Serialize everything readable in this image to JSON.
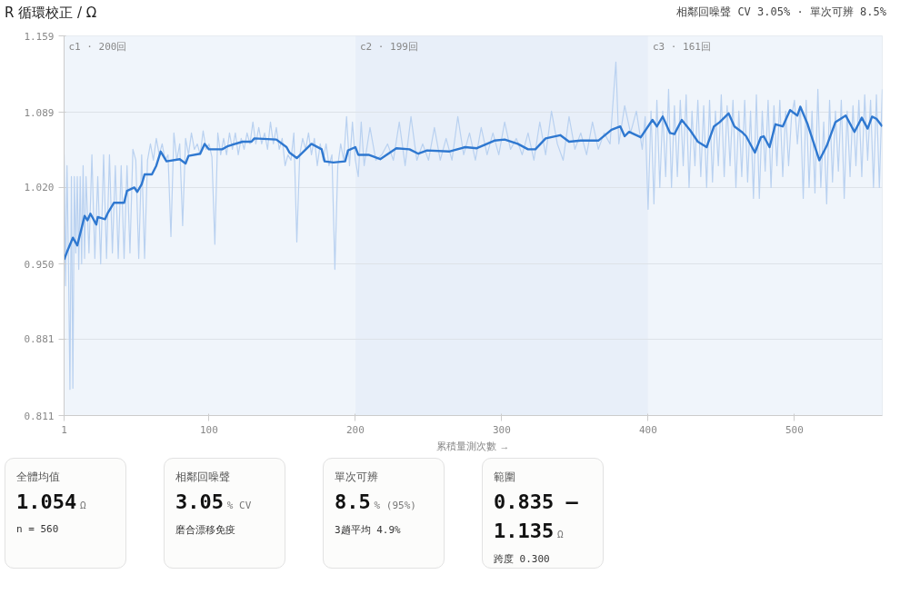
{
  "chart_data": [
    {
      "type": "line",
      "title": "R 循環校正 / Ω",
      "subtitle": "相鄰回噪聲 CV 3.05% · 單次可辨 8.5%",
      "xlabel": "累積量測次數 →",
      "xlim": [
        1,
        560
      ],
      "xticks": [
        1,
        100,
        200,
        300,
        400,
        500
      ],
      "ylim": [
        0.811,
        1.159
      ],
      "yticks": [
        {
          "value": 0.811,
          "label": "0.811"
        },
        {
          "value": 0.881,
          "label": "0.881"
        },
        {
          "value": 0.95,
          "label": "0.950"
        },
        {
          "value": 1.02,
          "label": "1.020"
        },
        {
          "value": 1.089,
          "label": "1.089"
        },
        {
          "value": 1.159,
          "label": "1.159"
        }
      ],
      "grid": "y",
      "marker": "none",
      "line_style": "solid",
      "bands": [
        {
          "axis": "x",
          "from": 1,
          "to": 200,
          "label": "c1 · 200回",
          "color": "#f0f5fb"
        },
        {
          "axis": "x",
          "from": 200,
          "to": 400,
          "label": "c2 · 199回",
          "color": "#e8eff9"
        },
        {
          "axis": "x",
          "from": 400,
          "to": 560,
          "label": "c3 · 161回",
          "color": "#f0f5fb"
        }
      ],
      "series": [
        {
          "color": "#b9d1f0",
          "x": [
            1,
            2,
            3,
            4,
            5,
            6,
            7,
            8,
            9,
            10,
            11,
            12,
            13,
            14,
            15,
            16,
            18,
            20,
            22,
            24,
            26,
            28,
            30,
            32,
            34,
            36,
            38,
            40,
            42,
            44,
            46,
            48,
            50,
            52,
            54,
            56,
            58,
            60,
            62,
            64,
            66,
            68,
            70,
            72,
            74,
            76,
            78,
            80,
            82,
            84,
            86,
            88,
            90,
            92,
            94,
            96,
            98,
            100,
            102,
            104,
            106,
            108,
            110,
            112,
            114,
            116,
            118,
            120,
            122,
            124,
            126,
            128,
            130,
            132,
            134,
            136,
            138,
            140,
            142,
            144,
            146,
            148,
            150,
            152,
            154,
            156,
            158,
            160,
            162,
            164,
            166,
            168,
            170,
            172,
            174,
            176,
            178,
            180,
            182,
            184,
            186,
            188,
            190,
            192,
            194,
            196,
            198,
            200,
            202,
            204,
            206,
            210,
            214,
            218,
            222,
            226,
            230,
            234,
            238,
            242,
            246,
            250,
            254,
            258,
            262,
            266,
            270,
            274,
            278,
            282,
            286,
            290,
            294,
            298,
            302,
            306,
            310,
            314,
            318,
            322,
            326,
            330,
            334,
            338,
            342,
            346,
            350,
            354,
            358,
            362,
            366,
            370,
            374,
            378,
            380,
            384,
            388,
            392,
            396,
            398,
            400,
            402,
            404,
            406,
            408,
            410,
            412,
            414,
            416,
            418,
            420,
            422,
            424,
            426,
            428,
            430,
            432,
            434,
            436,
            438,
            440,
            442,
            444,
            446,
            448,
            450,
            452,
            454,
            456,
            458,
            460,
            462,
            464,
            466,
            468,
            470,
            472,
            474,
            476,
            478,
            480,
            482,
            484,
            486,
            488,
            490,
            492,
            494,
            496,
            498,
            500,
            502,
            504,
            506,
            508,
            510,
            512,
            514,
            516,
            518,
            520,
            522,
            524,
            526,
            528,
            530,
            532,
            534,
            536,
            538,
            540,
            542,
            544,
            546,
            548,
            550,
            552,
            554,
            556,
            558,
            560
          ],
          "values": [
            1.05,
            0.93,
            1.04,
            0.95,
            0.835,
            1.03,
            0.836,
            1.03,
            0.96,
            1.03,
            0.945,
            1.03,
            0.95,
            1.04,
            0.955,
            1.03,
            0.96,
            1.05,
            0.955,
            1.03,
            0.95,
            1.05,
            0.955,
            1.05,
            0.96,
            1.04,
            0.955,
            1.04,
            0.955,
            1.04,
            0.96,
            1.055,
            1.045,
            0.955,
            1.05,
            0.955,
            1.045,
            1.06,
            1.045,
            1.065,
            1.05,
            1.06,
            1.045,
            1.05,
            0.975,
            1.07,
            1.045,
            1.06,
            0.985,
            1.065,
            1.05,
            1.07,
            1.055,
            1.06,
            1.05,
            1.072,
            1.055,
            1.06,
            1.048,
            0.968,
            1.07,
            1.05,
            1.065,
            1.05,
            1.07,
            1.055,
            1.07,
            1.05,
            1.065,
            1.055,
            1.07,
            1.06,
            1.08,
            1.06,
            1.075,
            1.06,
            1.07,
            1.055,
            1.08,
            1.06,
            1.075,
            1.055,
            1.065,
            1.04,
            1.05,
            1.045,
            1.07,
            0.97,
            1.05,
            1.065,
            1.055,
            1.07,
            1.05,
            1.065,
            1.04,
            1.06,
            1.045,
            1.06,
            1.04,
            1.05,
            0.945,
            1.04,
            1.06,
            1.045,
            1.085,
            1.04,
            1.08,
            1.045,
            1.03,
            1.08,
            1.04,
            1.075,
            1.045,
            1.05,
            1.06,
            1.045,
            1.08,
            1.04,
            1.085,
            1.045,
            1.06,
            1.045,
            1.075,
            1.045,
            1.065,
            1.045,
            1.085,
            1.05,
            1.07,
            1.045,
            1.075,
            1.05,
            1.07,
            1.05,
            1.08,
            1.055,
            1.065,
            1.05,
            1.07,
            1.045,
            1.08,
            1.05,
            1.09,
            1.06,
            1.045,
            1.085,
            1.055,
            1.07,
            1.05,
            1.08,
            1.055,
            1.07,
            1.06,
            1.135,
            1.06,
            1.095,
            1.07,
            1.09,
            1.055,
            1.085,
            1.0,
            1.09,
            1.005,
            1.1,
            1.02,
            1.09,
            1.03,
            1.11,
            1.02,
            1.095,
            1.03,
            1.1,
            1.04,
            1.105,
            1.02,
            1.09,
            1.04,
            1.1,
            1.03,
            1.095,
            1.02,
            1.1,
            1.025,
            1.09,
            1.04,
            1.105,
            1.03,
            1.095,
            1.04,
            1.1,
            1.02,
            1.09,
            1.03,
            1.1,
            1.025,
            1.09,
            1.01,
            1.105,
            1.01,
            1.09,
            1.035,
            1.1,
            1.02,
            1.095,
            1.04,
            1.1,
            1.03,
            1.09,
            1.04,
            1.085,
            1.1,
            1.06,
            1.095,
            1.01,
            1.1,
            1.02,
            1.09,
            1.015,
            1.11,
            1.02,
            1.08,
            1.005,
            1.1,
            1.025,
            1.09,
            1.035,
            1.1,
            1.01,
            1.09,
            1.03,
            1.095,
            1.04,
            1.1,
            1.03,
            1.105,
            1.045,
            1.1,
            1.02,
            1.105,
            1.02,
            1.11
          ]
        },
        {
          "color": "#2f78d0",
          "x": [
            1,
            3,
            7,
            10,
            13,
            15,
            17,
            19,
            23,
            24,
            29,
            31,
            35,
            42,
            44,
            49,
            51,
            54,
            56,
            61,
            64,
            67,
            71,
            80,
            84,
            86,
            94,
            97,
            100,
            109,
            113,
            123,
            129,
            131,
            146,
            153,
            155,
            160,
            170,
            177,
            179,
            185,
            193,
            195,
            200,
            202,
            209,
            217,
            228,
            237,
            243,
            249,
            264,
            275,
            283,
            295,
            302,
            311,
            318,
            323,
            330,
            340,
            346,
            354,
            366,
            375,
            381,
            384,
            387,
            395,
            403,
            406,
            410,
            415,
            418,
            423,
            429,
            434,
            440,
            445,
            449,
            455,
            459,
            464,
            467,
            473,
            477,
            479,
            483,
            487,
            492,
            497,
            502,
            504,
            509,
            517,
            522,
            528,
            535,
            541,
            546,
            550,
            553,
            556,
            560
          ],
          "values": [
            0.954,
            0.961,
            0.974,
            0.967,
            0.983,
            0.994,
            0.99,
            0.996,
            0.986,
            0.993,
            0.991,
            0.997,
            1.006,
            1.006,
            1.017,
            1.02,
            1.016,
            1.023,
            1.032,
            1.032,
            1.04,
            1.053,
            1.044,
            1.046,
            1.042,
            1.049,
            1.051,
            1.06,
            1.055,
            1.055,
            1.058,
            1.062,
            1.062,
            1.065,
            1.064,
            1.057,
            1.052,
            1.047,
            1.06,
            1.055,
            1.044,
            1.043,
            1.044,
            1.054,
            1.057,
            1.05,
            1.05,
            1.046,
            1.056,
            1.055,
            1.051,
            1.054,
            1.053,
            1.057,
            1.056,
            1.063,
            1.064,
            1.06,
            1.055,
            1.055,
            1.065,
            1.068,
            1.062,
            1.063,
            1.063,
            1.073,
            1.076,
            1.067,
            1.071,
            1.066,
            1.082,
            1.076,
            1.085,
            1.07,
            1.069,
            1.082,
            1.072,
            1.062,
            1.057,
            1.076,
            1.08,
            1.088,
            1.076,
            1.071,
            1.067,
            1.052,
            1.066,
            1.067,
            1.057,
            1.078,
            1.076,
            1.091,
            1.086,
            1.094,
            1.078,
            1.045,
            1.058,
            1.08,
            1.086,
            1.071,
            1.084,
            1.074,
            1.085,
            1.083,
            1.076
          ]
        }
      ]
    },
    {
      "type": "other",
      "title": "全體均值",
      "annotations": [
        "1.054",
        "Ω",
        "n = 560"
      ]
    },
    {
      "type": "other",
      "title": "相鄰回噪聲",
      "annotations": [
        "3.05",
        "% CV",
        "磨合漂移免疫"
      ]
    },
    {
      "type": "other",
      "title": "單次可辨",
      "annotations": [
        "8.5",
        "% (95%)",
        "3趟平均 4.9%"
      ]
    },
    {
      "type": "other",
      "title": "範圍",
      "annotations": [
        "0.835 – 1.135",
        "Ω",
        "跨度 0.300"
      ]
    }
  ]
}
